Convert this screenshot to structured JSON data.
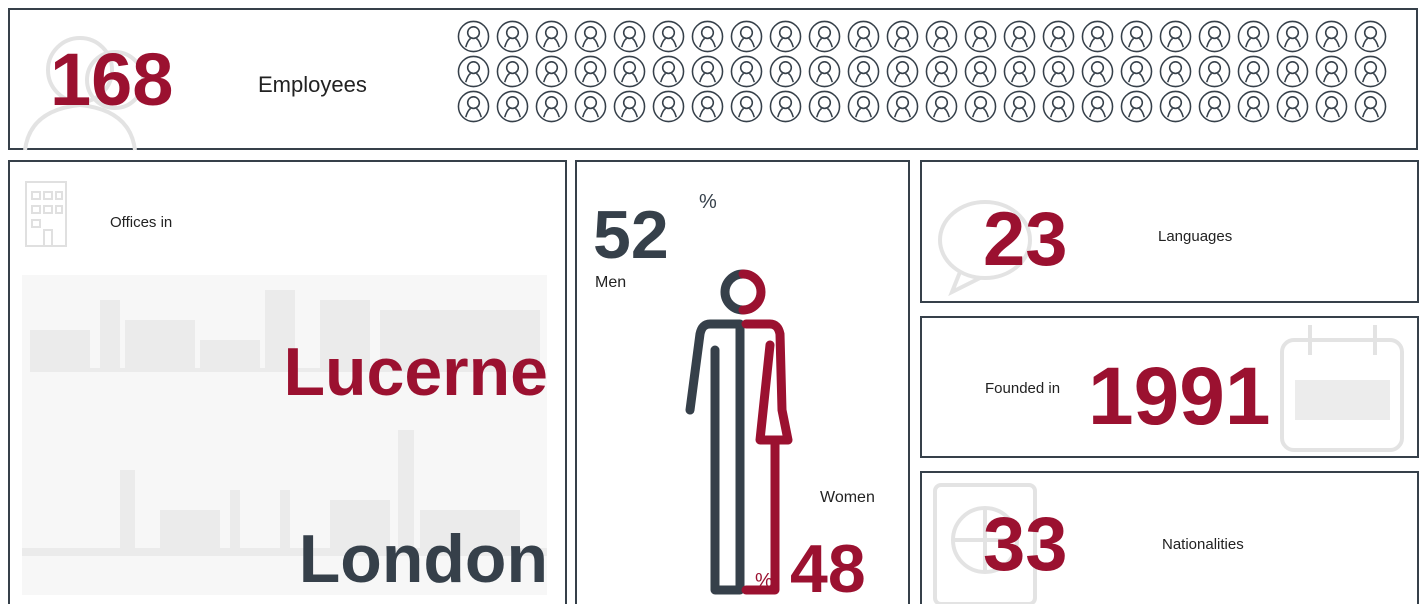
{
  "employees": {
    "count": 168,
    "label": "Employees"
  },
  "offices": {
    "label": "Offices in",
    "cities": [
      "Lucerne",
      "London"
    ]
  },
  "gender": {
    "men": {
      "value": 52,
      "label": "Men"
    },
    "women": {
      "value": 48,
      "label": "Women"
    },
    "unit": "%"
  },
  "languages": {
    "count": 23,
    "label": "Languages"
  },
  "founded": {
    "label": "Founded in",
    "year": 1991
  },
  "nationalities": {
    "count": 33,
    "label": "Nationalities"
  }
}
